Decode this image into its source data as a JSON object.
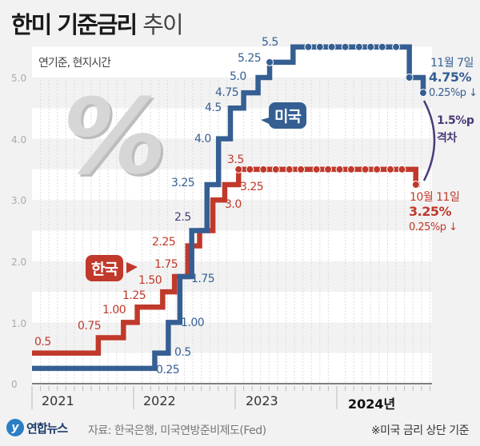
{
  "title": {
    "bold": "한미 기준금리",
    "light": "추이"
  },
  "unit_note": "연기준, 현지시간",
  "watermark": "%",
  "colors": {
    "korea": "#c0392b",
    "us": "#355f93",
    "gap": "#4b3a78",
    "background": "#f2f2f2"
  },
  "chart_data": {
    "type": "line",
    "step": true,
    "ylim": [
      0,
      5.5
    ],
    "y_ticks": [
      "0",
      "1.0",
      "2.0",
      "3.0",
      "4.0",
      "5.0"
    ],
    "x_ticks": [
      "2021",
      "2022",
      "2023",
      "2024년"
    ],
    "grid": true,
    "series": [
      {
        "name": "한국",
        "points": [
          [
            "2021-01-01",
            0.5
          ],
          [
            "2021-08-26",
            0.75
          ],
          [
            "2021-11-25",
            1.0
          ],
          [
            "2022-01-14",
            1.25
          ],
          [
            "2022-04-14",
            1.5
          ],
          [
            "2022-05-26",
            1.75
          ],
          [
            "2022-07-13",
            2.25
          ],
          [
            "2022-08-25",
            2.5
          ],
          [
            "2022-10-12",
            3.0
          ],
          [
            "2022-11-24",
            3.25
          ],
          [
            "2023-01-13",
            3.5
          ],
          [
            "2024-10-11",
            3.25
          ],
          [
            "2024-10-25",
            3.25
          ]
        ],
        "hold_dots": [
          "2023-01-13",
          "2023-02-23",
          "2023-04-11",
          "2023-05-25",
          "2023-07-13",
          "2023-08-24",
          "2023-10-19",
          "2023-11-30",
          "2024-01-11",
          "2024-02-22",
          "2024-04-12",
          "2024-05-23",
          "2024-07-11",
          "2024-08-22",
          "2024-10-11"
        ]
      },
      {
        "name": "미국",
        "points": [
          [
            "2021-01-01",
            0.25
          ],
          [
            "2022-03-16",
            0.5
          ],
          [
            "2022-05-04",
            1.0
          ],
          [
            "2022-06-15",
            1.75
          ],
          [
            "2022-07-27",
            2.5
          ],
          [
            "2022-09-21",
            3.25
          ],
          [
            "2022-11-02",
            4.0
          ],
          [
            "2022-12-14",
            4.5
          ],
          [
            "2023-02-01",
            4.75
          ],
          [
            "2023-03-22",
            5.0
          ],
          [
            "2023-05-03",
            5.25
          ],
          [
            "2023-07-26",
            5.5
          ],
          [
            "2024-09-18",
            5.0
          ],
          [
            "2024-11-07",
            4.75
          ]
        ],
        "hold_dots": [
          "2023-05-03",
          "2023-09-20",
          "2023-11-01",
          "2023-12-13",
          "2024-01-31",
          "2024-03-20",
          "2024-05-01",
          "2024-06-12",
          "2024-07-31",
          "2024-09-18",
          "2024-11-07"
        ]
      }
    ],
    "data_labels": {
      "korea": [
        "0.5",
        "0.75",
        "1.00",
        "1.25",
        "1.50",
        "1.75",
        "2.25",
        "3.0",
        "3.25",
        "3.5"
      ],
      "shared": "2.5",
      "us": [
        "0.25",
        "0.5",
        "1.00",
        "1.75",
        "3.25",
        "4.0",
        "4.5",
        "4.75",
        "5.0",
        "5.25",
        "5.5"
      ]
    }
  },
  "callouts": {
    "us": "미국",
    "korea": "한국"
  },
  "annotations": {
    "us": {
      "date": "11월 7일",
      "rate": "4.75%",
      "change": "0.25%p ↓"
    },
    "gap": {
      "value": "1.5%p",
      "label": "격차"
    },
    "korea": {
      "date": "10월 11일",
      "rate": "3.25%",
      "change": "0.25%p ↓"
    }
  },
  "footer": {
    "logo": "연합뉴스",
    "source": "자료: 한국은행, 미국연방준비제도(Fed)",
    "note": "※미국 금리 상단 기준"
  }
}
